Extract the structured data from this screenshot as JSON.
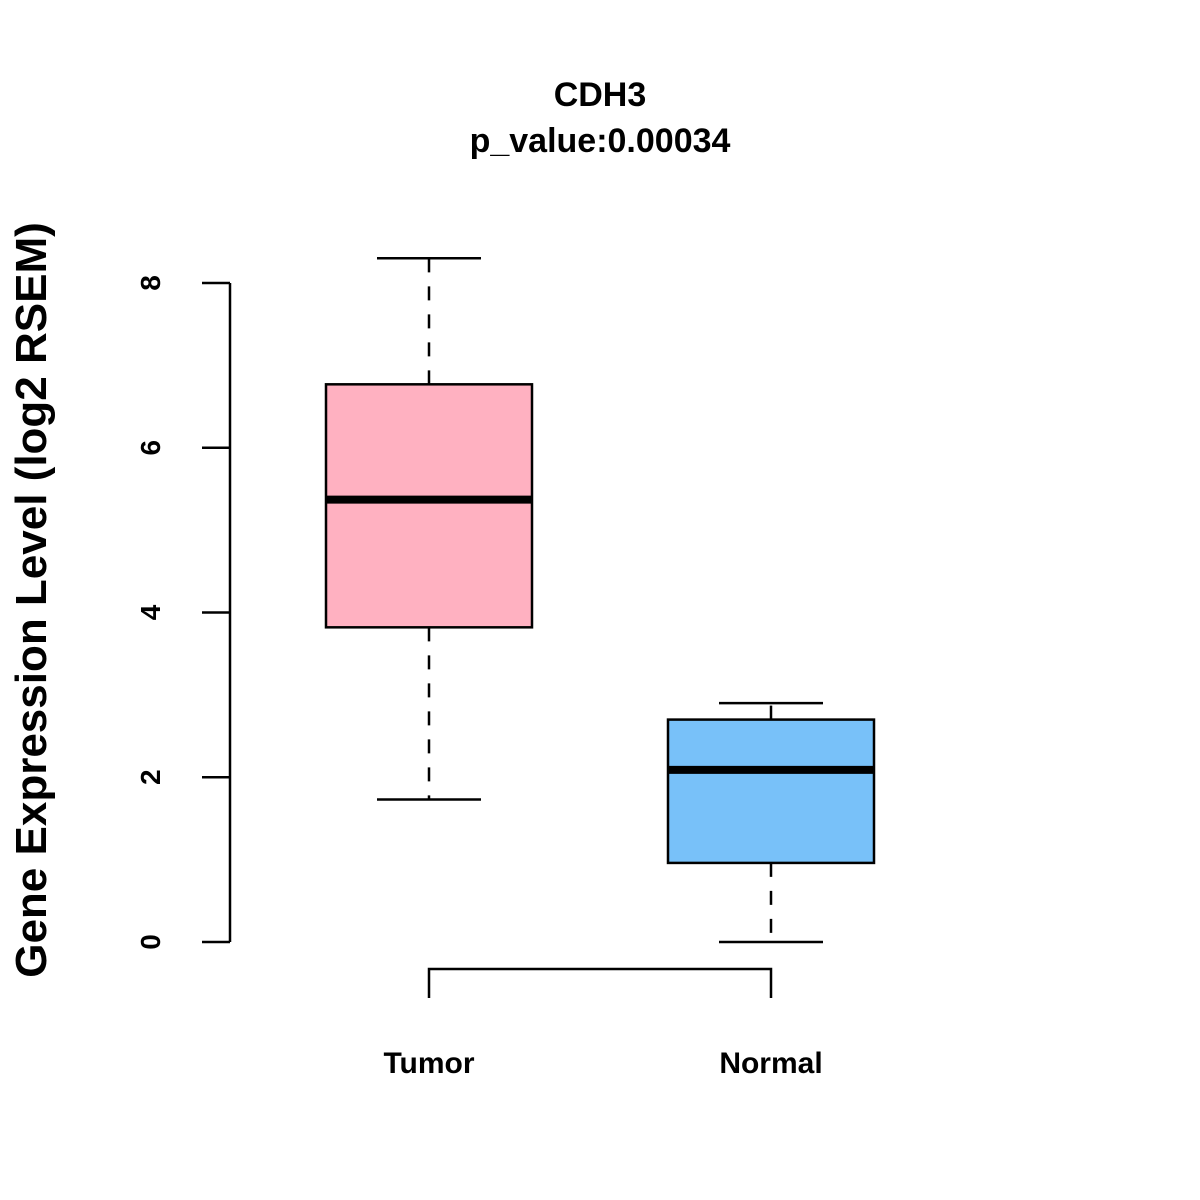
{
  "chart_data": {
    "type": "box",
    "title": "CDH3",
    "subtitle": "p_value:0.00034",
    "xlabel": "",
    "ylabel": "Gene Expression Level (log2 RSEM)",
    "ylim": [
      0,
      8.3
    ],
    "yticks": [
      0,
      2,
      4,
      6,
      8
    ],
    "categories": [
      "Tumor",
      "Normal"
    ],
    "boxes": [
      {
        "name": "Tumor",
        "min": 1.73,
        "q1": 3.82,
        "median": 5.37,
        "q3": 6.77,
        "max": 8.3,
        "color": "#FFB1C1"
      },
      {
        "name": "Normal",
        "min": 0.0,
        "q1": 0.96,
        "median": 2.09,
        "q3": 2.7,
        "max": 2.9,
        "color": "#78C1F9"
      }
    ],
    "comparison_bracket": [
      "Tumor",
      "Normal"
    ]
  }
}
